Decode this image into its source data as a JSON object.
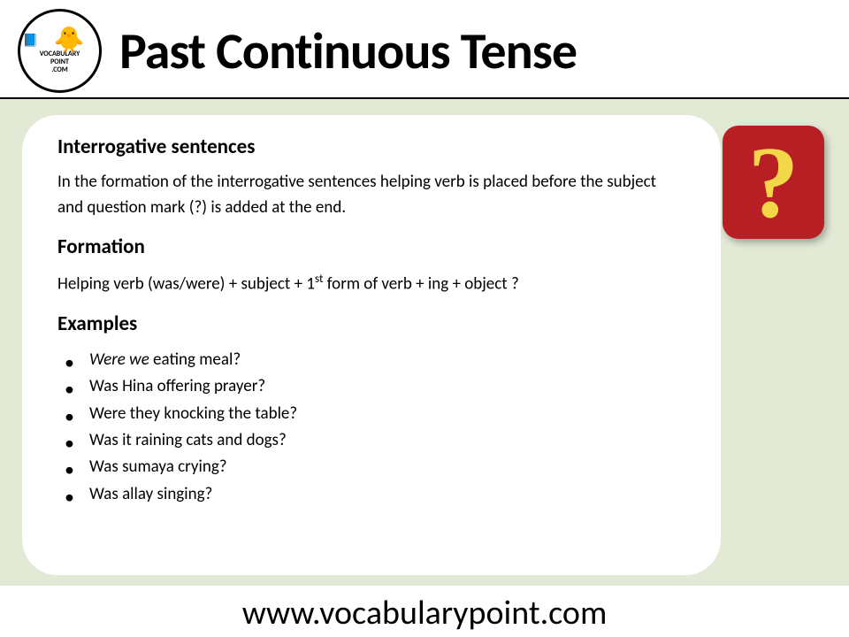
{
  "header": {
    "title": "Past Continuous Tense",
    "logo_top": "VOCABULARY",
    "logo_bottom": "POINT",
    "logo_ext": ".COM"
  },
  "section1": {
    "heading": "Interrogative sentences",
    "text": "In the formation of the interrogative sentences helping verb is placed before the subject and question mark (?) is added at the end."
  },
  "section2": {
    "heading": "Formation",
    "text_pre": "Helping verb (was/were) + subject + 1",
    "text_sup": "st",
    "text_post": " form of verb + ing + object ?"
  },
  "section3": {
    "heading": "Examples",
    "items": [
      {
        "italic": "Were we",
        "rest": " eating meal?"
      },
      {
        "italic": "",
        "rest": "Was Hina offering prayer?"
      },
      {
        "italic": "",
        "rest": "Were they knocking the table?"
      },
      {
        "italic": "",
        "rest": "Was it raining cats and dogs?"
      },
      {
        "italic": "",
        "rest": "Was sumaya crying?"
      },
      {
        "italic": "",
        "rest": "Was allay singing?"
      }
    ]
  },
  "badge": {
    "symbol": "?"
  },
  "footer": {
    "url": "www.vocabularypoint.com"
  },
  "colors": {
    "page_bg": "#ffffff",
    "main_bg": "#e2e9d5",
    "card_bg": "#ffffff",
    "badge_bg": "#b81f24",
    "badge_fg": "#f2d748",
    "text": "#000000"
  }
}
